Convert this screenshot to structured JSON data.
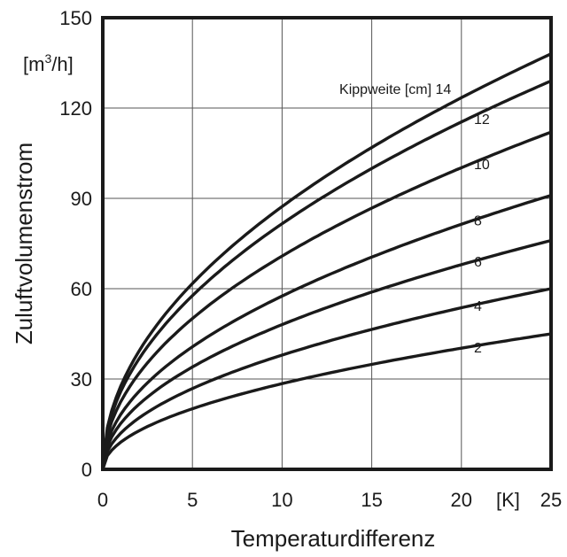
{
  "chart_data": {
    "type": "line",
    "xlabel": "Temperaturdifferenz",
    "ylabel": "Zuluftvolumenstrom",
    "yunit": "[m3/h]",
    "xunit": "[K]",
    "xlim": [
      0,
      25
    ],
    "ylim": [
      0,
      150
    ],
    "xticks": [
      0,
      5,
      10,
      15,
      20,
      25
    ],
    "yticks": [
      0,
      30,
      60,
      90,
      120,
      150
    ],
    "grid": true,
    "legend_title": "Kippweite [cm]",
    "x": [
      0,
      2.5,
      5,
      7.5,
      10,
      12.5,
      15,
      17.5,
      20,
      22.5,
      25
    ],
    "series": [
      {
        "name": "14",
        "values": [
          0,
          44,
          62,
          76,
          87,
          98,
          107,
          116,
          124,
          131,
          138
        ]
      },
      {
        "name": "12",
        "values": [
          0,
          41,
          58,
          71,
          82,
          91,
          100,
          108,
          116,
          123,
          129
        ]
      },
      {
        "name": "10",
        "values": [
          0,
          35,
          50,
          61,
          71,
          79,
          87,
          94,
          100,
          106,
          112
        ]
      },
      {
        "name": "8",
        "values": [
          0,
          29,
          41,
          50,
          58,
          65,
          71,
          77,
          82,
          87,
          91
        ]
      },
      {
        "name": "6",
        "values": [
          0,
          24,
          34,
          42,
          48,
          54,
          59,
          64,
          68,
          72,
          76
        ]
      },
      {
        "name": "4",
        "values": [
          0,
          19,
          27,
          33,
          38,
          42,
          46,
          50,
          53,
          57,
          60
        ]
      },
      {
        "name": "2",
        "values": [
          0,
          14,
          20,
          25,
          29,
          32,
          35,
          38,
          40,
          43,
          45
        ]
      }
    ]
  }
}
